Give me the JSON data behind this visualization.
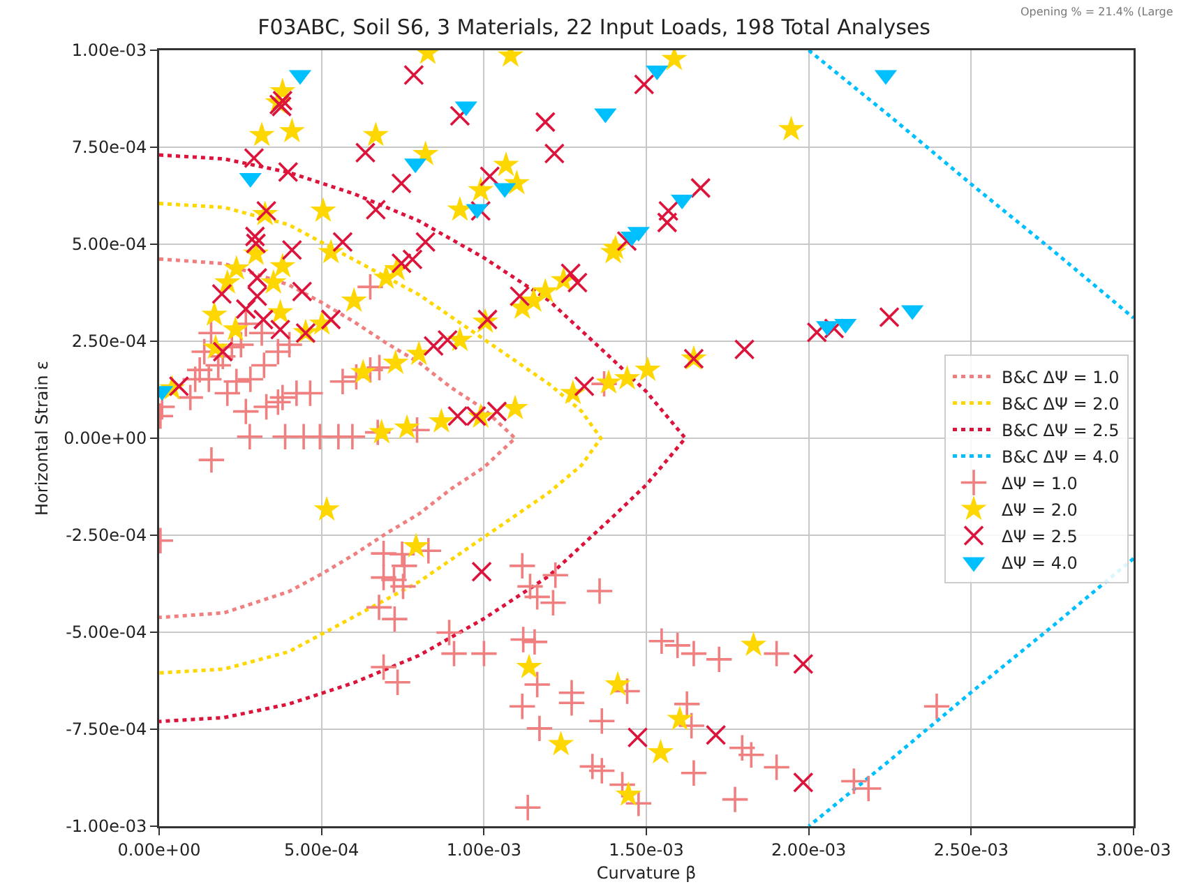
{
  "chart_data": {
    "type": "scatter",
    "title": "F03ABC, Soil S6, 3 Materials, 22 Input Loads, 198 Total Analyses",
    "xlabel": "Curvature β",
    "ylabel": "Horizontal Strain ε",
    "annotations": [
      "Opening % = 21.4% (Large"
    ],
    "xlim": [
      0,
      0.003
    ],
    "ylim": [
      -0.001,
      0.001
    ],
    "xticks": [
      {
        "value": 0,
        "label": "0.00e+00"
      },
      {
        "value": 0.0005,
        "label": "5.00e-04"
      },
      {
        "value": 0.001,
        "label": "1.00e-03"
      },
      {
        "value": 0.0015,
        "label": "1.50e-03"
      },
      {
        "value": 0.002,
        "label": "2.00e-03"
      },
      {
        "value": 0.0025,
        "label": "2.50e-03"
      },
      {
        "value": 0.003,
        "label": "3.00e-03"
      }
    ],
    "yticks": [
      {
        "value": -0.001,
        "label": "-1.00e-03"
      },
      {
        "value": -0.00075,
        "label": "-7.50e-04"
      },
      {
        "value": -0.0005,
        "label": "-5.00e-04"
      },
      {
        "value": -0.00025,
        "label": "-2.50e-04"
      },
      {
        "value": 0,
        "label": "0.00e+00"
      },
      {
        "value": 0.00025,
        "label": "2.50e-04"
      },
      {
        "value": 0.0005,
        "label": "5.00e-04"
      },
      {
        "value": 0.00075,
        "label": "7.50e-04"
      },
      {
        "value": 0.001,
        "label": "1.00e-03"
      }
    ],
    "grid": true,
    "legend": "right",
    "series": [
      {
        "name": "B&C ΔΨ = 1.0",
        "type": "line",
        "line_style": "dotted",
        "marker": "none",
        "color": "#f08080",
        "x": [
          0,
          0.0002,
          0.0004,
          0.0005,
          0.0006,
          0.0007,
          0.0008,
          0.0009,
          0.001,
          0.001096,
          0.001,
          0.0009,
          0.0008,
          0.0007,
          0.0006,
          0.0005,
          0.0004,
          0.0002,
          0
        ],
        "values": [
          0.000462,
          0.00045,
          0.000395,
          0.00035,
          0.0003,
          0.000245,
          0.000195,
          0.00013,
          7.5e-05,
          0,
          -7.5e-05,
          -0.00013,
          -0.000195,
          -0.000245,
          -0.0003,
          -0.00035,
          -0.000395,
          -0.00045,
          -0.000462
        ]
      },
      {
        "name": "B&C ΔΨ = 2.0",
        "type": "line",
        "line_style": "dotted",
        "marker": "none",
        "color": "#ffd700",
        "x": [
          0,
          0.0002,
          0.0004,
          0.0006,
          0.0008,
          0.001,
          0.0012,
          0.0013,
          0.00136,
          0.0013,
          0.0012,
          0.001,
          0.0008,
          0.0006,
          0.0004,
          0.0002,
          0
        ],
        "values": [
          0.000605,
          0.000595,
          0.00055,
          0.00046,
          0.00037,
          0.000255,
          0.00014,
          7e-05,
          0,
          -7e-05,
          -0.00014,
          -0.000255,
          -0.00037,
          -0.00046,
          -0.00055,
          -0.000595,
          -0.000605
        ]
      },
      {
        "name": "B&C ΔΨ = 2.5",
        "type": "line",
        "line_style": "dotted",
        "marker": "none",
        "color": "#dc143c",
        "x": [
          0,
          0.0002,
          0.0004,
          0.0006,
          0.0008,
          0.001,
          0.0012,
          0.0014,
          0.0015,
          0.00162,
          0.0015,
          0.0014,
          0.0012,
          0.001,
          0.0008,
          0.0006,
          0.0004,
          0.0002,
          0
        ],
        "values": [
          0.00073,
          0.00072,
          0.000685,
          0.00063,
          0.00056,
          0.000465,
          0.000355,
          0.0002,
          0.00012,
          0,
          -0.00012,
          -0.0002,
          -0.000355,
          -0.000465,
          -0.00056,
          -0.00063,
          -0.000685,
          -0.00072,
          -0.00073
        ]
      },
      {
        "name": "B&C ΔΨ = 4.0",
        "type": "line",
        "line_style": "dotted",
        "marker": "none",
        "color": "#00bfff",
        "x": [
          0.002,
          0.00225,
          0.0025,
          0.00275,
          0.003
        ],
        "values": [
          0.001,
          0.00083,
          0.000655,
          0.000485,
          0.00031
        ]
      },
      {
        "type": "line",
        "line_style": "dotted",
        "marker": "none",
        "color": "#00bfff",
        "x": [
          0.003,
          0.00275,
          0.0025,
          0.00225,
          0.002
        ],
        "values": [
          -0.00031,
          -0.000485,
          -0.000655,
          -0.00083,
          -0.001
        ]
      },
      {
        "name": "ΔΨ = 1.0",
        "marker": "plus",
        "color": "#f08080",
        "x": [
          0.00016,
          0.000139,
          0.000125,
          0.000111,
          0.000153,
          0.000182,
          0.000196,
          0.000224,
          0.000252,
          0.000267,
          0.000316,
          0.00021,
          0.000238,
          0.000281,
          0.000323,
          0.000366,
          0.000401,
          9.6e-05,
          9e-06,
          4e-06,
          0.000267,
          0.00033,
          0.000366,
          0.00038,
          0.000423,
          0.000465,
          0.000565,
          0.000607,
          0.00065,
          0.000678,
          0.00065,
          0.000279,
          0.000388,
          0.000445,
          0.000495,
          0.000552,
          0.000595,
          0.000673,
          0.000794,
          0.000161,
          4e-06,
          0.000691,
          0.000748,
          0.000829,
          0.000755,
          0.000691,
          0.000723,
          0.000751,
          0.000677,
          0.000725,
          0.000893,
          0.000908,
          0.001,
          0.000691,
          0.000734,
          0.001118,
          0.001142,
          0.001164,
          0.00122,
          0.001213,
          0.001121,
          0.001156,
          0.001164,
          0.00127,
          0.00127,
          0.001118,
          0.001171,
          0.001135,
          0.001356,
          0.001363,
          0.001334,
          0.001363,
          0.001426,
          0.001476,
          0.001441,
          0.001547,
          0.001596,
          0.001646,
          0.001724,
          0.001901,
          0.001625,
          0.001639,
          0.001646,
          0.001795,
          0.001823,
          0.001901,
          0.001773,
          0.002139,
          0.002184,
          0.002394,
          0.00137
        ],
        "values": [
          0.000271,
          0.000223,
          0.000176,
          0.000152,
          0.000152,
          0.000188,
          0.000211,
          0.000235,
          0.000241,
          0.000295,
          0.000271,
          0.000116,
          0.000146,
          0.000152,
          0.000188,
          0.000223,
          0.000241,
          0.000105,
          8.1e-05,
          5.7e-05,
          6.9e-05,
          8.1e-05,
          9.3e-05,
          0.000105,
          0.000116,
          0.000116,
          0.000146,
          0.000158,
          0.000176,
          0.000182,
          0.00039,
          4e-06,
          4e-06,
          4e-06,
          4e-06,
          4e-06,
          4e-06,
          1.5e-05,
          2.1e-05,
          -5.6e-05,
          -0.000264,
          -0.000297,
          -0.000299,
          -0.00029,
          -0.000329,
          -0.000359,
          -0.000365,
          -0.000382,
          -0.000436,
          -0.000466,
          -0.000501,
          -0.000555,
          -0.000555,
          -0.00059,
          -0.000629,
          -0.000329,
          -0.000382,
          -0.000409,
          -0.000353,
          -0.000424,
          -0.000519,
          -0.000525,
          -0.000635,
          -0.000656,
          -0.000682,
          -0.000691,
          -0.000748,
          -0.000952,
          -0.000394,
          -0.000729,
          -0.000846,
          -0.000857,
          -0.000893,
          -0.000941,
          -0.000652,
          -0.000523,
          -0.000534,
          -0.000555,
          -0.00057,
          -0.000555,
          -0.000685,
          -0.000741,
          -0.000863,
          -0.000798,
          -0.000816,
          -0.000848,
          -0.000931,
          -0.000884,
          -0.000903,
          -0.000691,
          0.00014
        ]
      },
      {
        "name": "ΔΨ = 2.0",
        "marker": "star",
        "color": "#ffd700",
        "x": [
          0.000827,
          0.001082,
          0.00038,
          0.000366,
          0.000316,
          0.000409,
          0.000667,
          0.00082,
          0.001068,
          0.001101,
          0.00099,
          0.000926,
          0.000505,
          0.000326,
          0.000529,
          0.000298,
          0.000238,
          0.00021,
          0.00038,
          0.000352,
          0.00017,
          0.000235,
          0.000373,
          0.000451,
          0.000501,
          0.0006,
          0.000699,
          0.000732,
          0.001118,
          0.001153,
          0.001189,
          0.001245,
          0.001004,
          0.000926,
          0.0008,
          0.000728,
          0.000628,
          0.000174,
          4e-05,
          0.001274,
          0.001096,
          0.00099,
          0.000869,
          0.000763,
          0.000685,
          0.001586,
          0.001946,
          0.001398,
          0.001405,
          0.001646,
          0.001504,
          0.001441,
          0.001384,
          0.000516,
          0.000791,
          0.001139,
          0.001237,
          0.00183,
          0.001412,
          0.001603,
          0.001544,
          0.001445
        ],
        "values": [
          0.000993,
          0.000986,
          0.000894,
          0.000865,
          0.000781,
          0.000791,
          0.000781,
          0.000732,
          0.000704,
          0.000657,
          0.000639,
          0.000589,
          0.000586,
          0.000577,
          0.000479,
          0.000475,
          0.000437,
          0.000401,
          0.000443,
          0.000401,
          0.000318,
          0.00028,
          0.000324,
          0.000273,
          0.000295,
          0.000354,
          0.000413,
          0.000435,
          0.000336,
          0.000354,
          0.000378,
          0.000407,
          0.0003,
          0.000253,
          0.000217,
          0.000194,
          0.00017,
          0.000233,
          0.000128,
          0.000116,
          7.7e-05,
          5.5e-05,
          4.3e-05,
          2.7e-05,
          1.5e-05,
          0.000977,
          0.000796,
          0.000479,
          0.00049,
          0.000205,
          0.000176,
          0.000154,
          0.000143,
          -0.000184,
          -0.000279,
          -0.00059,
          -0.000789,
          -0.000533,
          -0.000635,
          -0.000724,
          -0.00081,
          -0.000919
        ]
      },
      {
        "name": "ΔΨ = 2.5",
        "marker": "cross",
        "color": "#dc143c",
        "x": [
          0.000784,
          0.000377,
          0.00037,
          0.00038,
          0.000292,
          0.000397,
          0.000635,
          0.000926,
          0.001189,
          0.001217,
          0.000746,
          0.000667,
          0.001018,
          0.00099,
          0.00033,
          0.000295,
          0.000298,
          0.000409,
          0.000565,
          0.00082,
          0.000746,
          0.00078,
          0.000193,
          0.000302,
          0.00044,
          0.000267,
          0.000302,
          0.000321,
          0.000373,
          0.000451,
          0.000529,
          0.001011,
          0.000845,
          0.000888,
          0.000196,
          6.1e-05,
          0.000919,
          0.000976,
          0.00104,
          0.00111,
          0.001267,
          0.001288,
          0.001309,
          0.001493,
          0.001667,
          0.001568,
          0.001564,
          0.00144,
          0.002025,
          0.002078,
          0.002248,
          0.001802,
          0.001646,
          0.000993,
          0.001983,
          0.001473,
          0.001714,
          0.001983
        ],
        "values": [
          0.000936,
          0.000855,
          0.00086,
          0.00087,
          0.000722,
          0.000686,
          0.000736,
          0.000831,
          0.000815,
          0.000734,
          0.000657,
          0.000589,
          0.000675,
          0.000586,
          0.000586,
          0.00052,
          0.000502,
          0.000485,
          0.000506,
          0.000506,
          0.000451,
          0.000461,
          0.000372,
          0.000413,
          0.000378,
          0.000333,
          0.000366,
          0.000306,
          0.00028,
          0.000271,
          0.000306,
          0.000306,
          0.000238,
          0.000253,
          0.000223,
          0.000134,
          5.7e-05,
          5.7e-05,
          6.9e-05,
          0.000366,
          0.000425,
          0.000401,
          0.000134,
          0.000912,
          0.000645,
          0.000586,
          0.000556,
          0.000508,
          0.000273,
          0.000283,
          0.000312,
          0.000229,
          0.000205,
          -0.000344,
          -0.000582,
          -0.000771,
          -0.000765,
          -0.000887
        ]
      },
      {
        "name": "ΔΨ = 4.0",
        "marker": "triangle",
        "color": "#00bfff",
        "x": [
          0.000434,
          0.000281,
          0.000945,
          0.000789,
          0.000979,
          0.001064,
          9e-06,
          0.001374,
          0.001533,
          0.002237,
          0.00161,
          0.001476,
          0.001455,
          0.002057,
          0.002113,
          0.002319
        ],
        "values": [
          0.000936,
          0.000671,
          0.000855,
          0.000708,
          0.000591,
          0.000645,
          0.000122,
          0.000837,
          0.000948,
          0.000936,
          0.000615,
          0.000532,
          0.00052,
          0.000289,
          0.000295,
          0.00033
        ]
      }
    ]
  }
}
